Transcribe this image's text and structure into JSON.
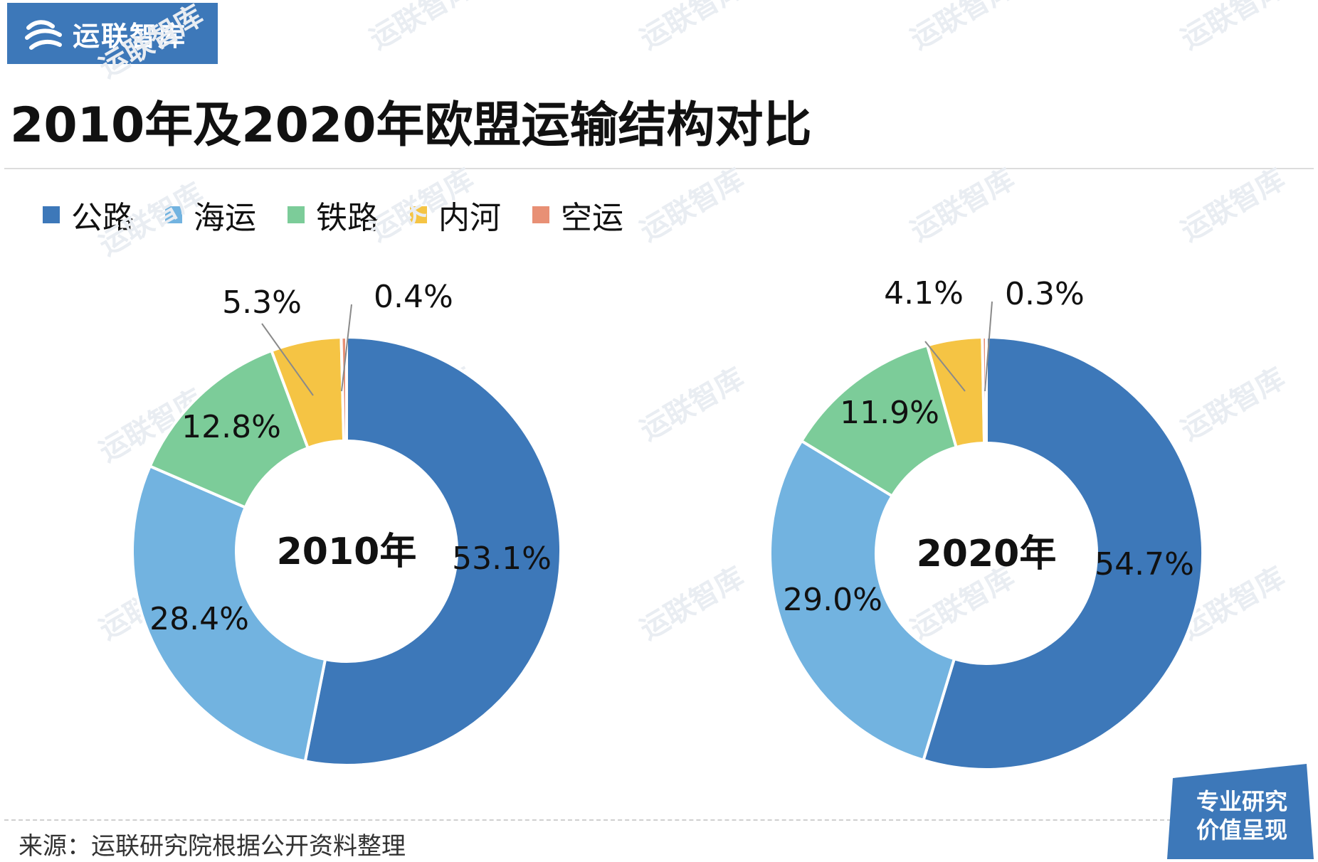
{
  "brand": {
    "name": "运联智库",
    "color": "#3d78b9"
  },
  "title": "2010年及2020年欧盟运输结构对比",
  "legend": [
    {
      "label": "公路",
      "color": "#3d78b9"
    },
    {
      "label": "海运",
      "color": "#72b3e0"
    },
    {
      "label": "铁路",
      "color": "#7ccc99"
    },
    {
      "label": "内河",
      "color": "#f5c444"
    },
    {
      "label": "空运",
      "color": "#e89075"
    }
  ],
  "chart_data": [
    {
      "type": "pie",
      "center_label": "2010年",
      "categories": [
        "公路",
        "海运",
        "铁路",
        "内河",
        "空运"
      ],
      "values": [
        53.1,
        28.4,
        12.8,
        5.3,
        0.4
      ],
      "labels": [
        "53.1%",
        "28.4%",
        "12.8%",
        "5.3%",
        "0.4%"
      ]
    },
    {
      "type": "pie",
      "center_label": "2020年",
      "categories": [
        "公路",
        "海运",
        "铁路",
        "内河",
        "空运"
      ],
      "values": [
        54.7,
        29.0,
        11.9,
        4.1,
        0.3
      ],
      "labels": [
        "54.7%",
        "29.0%",
        "11.9%",
        "4.1%",
        "0.3%"
      ]
    }
  ],
  "source": "来源：运联研究院根据公开资料整理",
  "stamp": {
    "line1": "专业研究",
    "line2": "价值呈现"
  },
  "watermark": "运联智库"
}
